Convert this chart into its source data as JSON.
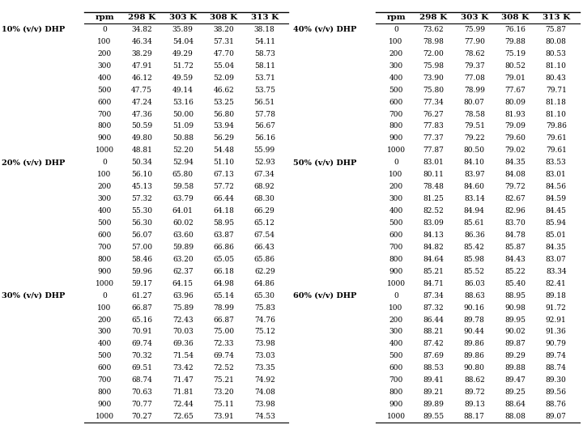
{
  "sections": [
    {
      "label": "10% (v/v) DHP",
      "rpms": [
        0,
        100,
        200,
        300,
        400,
        500,
        600,
        700,
        800,
        900,
        1000
      ],
      "298K": [
        34.82,
        46.34,
        38.29,
        47.91,
        46.12,
        47.75,
        47.24,
        47.36,
        50.59,
        49.8,
        48.81
      ],
      "303K": [
        35.89,
        54.04,
        49.29,
        51.72,
        49.59,
        49.14,
        53.16,
        50.0,
        51.09,
        50.88,
        52.2
      ],
      "308K": [
        38.2,
        57.31,
        47.7,
        55.04,
        52.09,
        46.62,
        53.25,
        56.8,
        53.94,
        56.29,
        54.48
      ],
      "313K": [
        38.18,
        54.11,
        58.73,
        58.11,
        53.71,
        53.75,
        56.51,
        57.78,
        56.67,
        56.16,
        55.99
      ]
    },
    {
      "label": "20% (v/v) DHP",
      "rpms": [
        0,
        100,
        200,
        300,
        400,
        500,
        600,
        700,
        800,
        900,
        1000
      ],
      "298K": [
        50.34,
        56.1,
        45.13,
        57.32,
        55.3,
        56.3,
        56.07,
        57.0,
        58.46,
        59.96,
        59.17
      ],
      "303K": [
        52.94,
        65.8,
        59.58,
        63.79,
        64.01,
        60.02,
        63.6,
        59.89,
        63.2,
        62.37,
        64.15
      ],
      "308K": [
        51.1,
        67.13,
        57.72,
        66.44,
        64.18,
        58.95,
        63.87,
        66.86,
        65.05,
        66.18,
        64.98
      ],
      "313K": [
        52.93,
        67.34,
        68.92,
        68.3,
        66.29,
        65.12,
        67.54,
        66.43,
        65.86,
        62.29,
        64.86
      ]
    },
    {
      "label": "30% (v/v) DHP",
      "rpms": [
        0,
        100,
        200,
        300,
        400,
        500,
        600,
        700,
        800,
        900,
        1000
      ],
      "298K": [
        61.27,
        66.87,
        65.16,
        70.91,
        69.74,
        70.32,
        69.51,
        68.74,
        70.63,
        70.77,
        70.27
      ],
      "303K": [
        63.96,
        75.89,
        72.43,
        70.03,
        69.36,
        71.54,
        73.42,
        71.47,
        71.81,
        72.44,
        72.65
      ],
      "308K": [
        65.14,
        78.99,
        66.87,
        75.0,
        72.33,
        69.74,
        72.52,
        75.21,
        73.2,
        75.11,
        73.91
      ],
      "313K": [
        65.3,
        75.83,
        74.76,
        75.12,
        73.98,
        73.03,
        73.35,
        74.92,
        74.08,
        73.98,
        74.53
      ]
    },
    {
      "label": "40% (v/v) DHP",
      "rpms": [
        0,
        100,
        200,
        300,
        400,
        500,
        600,
        700,
        800,
        900,
        1000
      ],
      "298K": [
        73.62,
        78.98,
        72.0,
        75.98,
        73.9,
        75.8,
        77.34,
        76.27,
        77.83,
        77.37,
        77.87
      ],
      "303K": [
        75.99,
        77.9,
        78.62,
        79.37,
        77.08,
        78.99,
        80.07,
        78.58,
        79.51,
        79.22,
        80.5
      ],
      "308K": [
        76.16,
        79.88,
        75.19,
        80.52,
        79.01,
        77.67,
        80.09,
        81.93,
        79.09,
        79.6,
        79.02
      ],
      "313K": [
        75.87,
        80.08,
        80.53,
        81.1,
        80.43,
        79.71,
        81.18,
        81.1,
        79.86,
        79.61,
        79.61
      ]
    },
    {
      "label": "50% (v/v) DHP",
      "rpms": [
        0,
        100,
        200,
        300,
        400,
        500,
        600,
        700,
        800,
        900,
        1000
      ],
      "298K": [
        83.01,
        80.11,
        78.48,
        81.25,
        82.52,
        83.09,
        84.13,
        84.82,
        84.64,
        85.21,
        84.71
      ],
      "303K": [
        84.1,
        83.97,
        84.6,
        83.14,
        84.94,
        85.61,
        86.36,
        85.42,
        85.98,
        85.52,
        86.03
      ],
      "308K": [
        84.35,
        84.08,
        79.72,
        82.67,
        82.96,
        83.7,
        84.78,
        85.87,
        84.43,
        85.22,
        85.4
      ],
      "313K": [
        83.53,
        83.01,
        84.56,
        84.59,
        84.45,
        85.94,
        85.01,
        84.35,
        83.07,
        83.34,
        82.41
      ]
    },
    {
      "label": "60% (v/v) DHP",
      "rpms": [
        0,
        100,
        200,
        300,
        400,
        500,
        600,
        700,
        800,
        900,
        1000
      ],
      "298K": [
        87.34,
        87.32,
        86.44,
        88.21,
        87.42,
        87.69,
        88.53,
        89.41,
        89.21,
        89.89,
        89.55
      ],
      "303K": [
        88.63,
        90.16,
        89.78,
        90.44,
        89.86,
        89.86,
        90.8,
        88.62,
        89.72,
        89.13,
        88.17
      ],
      "308K": [
        88.95,
        90.98,
        89.95,
        90.02,
        89.87,
        89.29,
        89.88,
        89.47,
        89.25,
        88.64,
        88.08
      ],
      "313K": [
        89.18,
        91.72,
        92.91,
        91.36,
        90.79,
        89.74,
        88.74,
        89.3,
        89.56,
        88.76,
        89.07
      ]
    }
  ],
  "col_headers": [
    "rpm",
    "298 K",
    "303 K",
    "308 K",
    "313 K"
  ],
  "bg_color": "#ffffff",
  "text_color": "#000000",
  "font_size": 6.5,
  "header_font_size": 7.5,
  "label_font_size": 7.0,
  "fig_width": 7.2,
  "fig_height": 5.3,
  "dpi": 100
}
